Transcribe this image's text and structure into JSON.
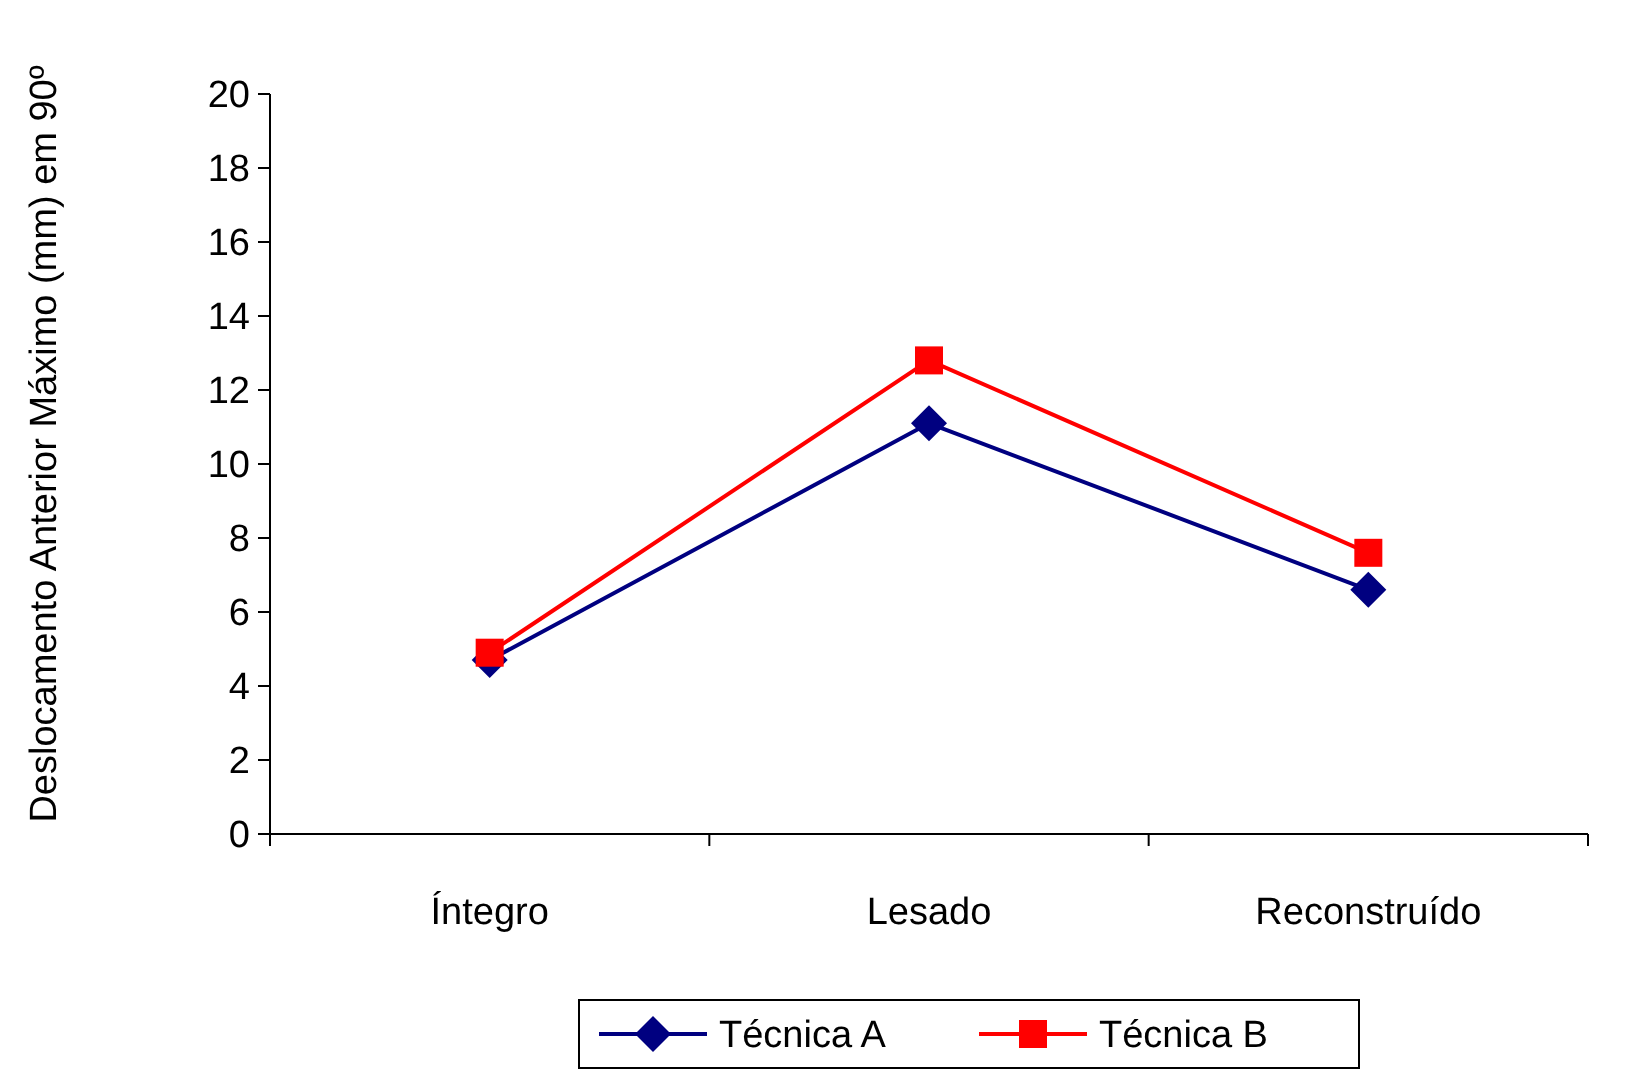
{
  "chart_data": {
    "type": "line",
    "ylabel": "Deslocamento Anterior Máximo (mm) em 90º",
    "categories": [
      "Íntegro",
      "Lesado",
      "Reconstruído"
    ],
    "series": [
      {
        "name": "Técnica A",
        "color": "#000080",
        "marker": "diamond",
        "values": [
          4.7,
          11.1,
          6.6
        ]
      },
      {
        "name": "Técnica B",
        "color": "#ff0000",
        "marker": "square",
        "values": [
          4.9,
          12.8,
          7.6
        ]
      }
    ],
    "ylim": [
      0,
      20
    ],
    "yticks": [
      0,
      2,
      4,
      6,
      8,
      10,
      12,
      14,
      16,
      18,
      20
    ],
    "grid": false,
    "legend": "bottom"
  }
}
